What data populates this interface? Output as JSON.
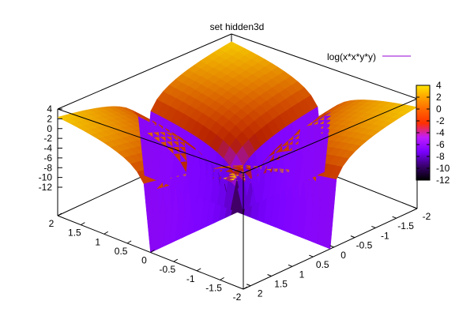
{
  "chart_data": {
    "type": "surface3d",
    "title": "set hidden3d",
    "function": "log(x*x*y*y)",
    "legend": {
      "label": "log(x*x*y*y)",
      "position": "top-right",
      "line_color": "#9400d3"
    },
    "x_range": [
      -2,
      2
    ],
    "y_range": [
      -2,
      2
    ],
    "z_range": [
      -12,
      4
    ],
    "x_ticks": [
      "2",
      "1.5",
      "1",
      "0.5",
      "0",
      "-0.5",
      "-1",
      "-1.5",
      "-2"
    ],
    "y_ticks": [
      "2",
      "1.5",
      "1",
      "0.5",
      "0",
      "-0.5",
      "-1",
      "-1.5",
      "-2"
    ],
    "z_ticks": [
      "4",
      "2",
      "0",
      "-2",
      "-4",
      "-6",
      "-8",
      "-10",
      "-12"
    ],
    "colorbar": {
      "ticks": [
        "4",
        "2",
        "0",
        "-2",
        "-4",
        "-6",
        "-8",
        "-10",
        "-12"
      ],
      "range": [
        -12,
        4
      ],
      "palette": "gnuplot-rgbformulae-7-5-15"
    },
    "grid": false
  }
}
